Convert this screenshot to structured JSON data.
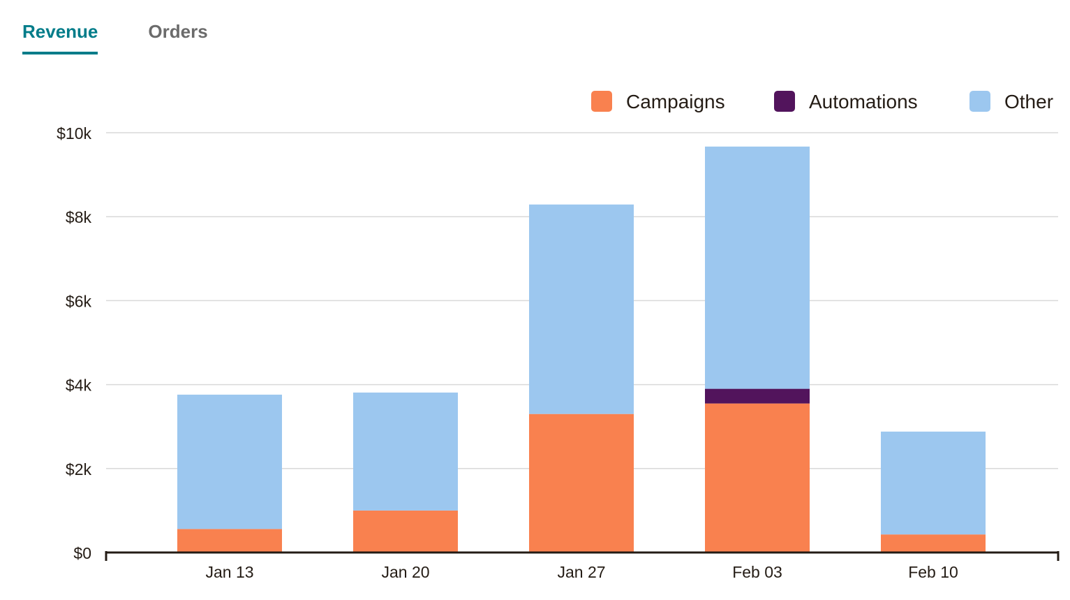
{
  "tabs": [
    {
      "label": "Revenue",
      "active": true
    },
    {
      "label": "Orders",
      "active": false
    }
  ],
  "colors": {
    "accent": "#007c89",
    "campaigns": "#f9814f",
    "automations": "#52145c",
    "other": "#9cc7ef",
    "grid": "#d9d9d9",
    "axis": "#241c15"
  },
  "chart_data": {
    "type": "bar",
    "stacked": true,
    "title": "",
    "xlabel": "",
    "ylabel": "",
    "categories": [
      "Jan 13",
      "Jan 20",
      "Jan 27",
      "Feb 03",
      "Feb 10"
    ],
    "series": [
      {
        "name": "Campaigns",
        "color": "#f9814f",
        "values": [
          560,
          1000,
          3300,
          3550,
          430
        ]
      },
      {
        "name": "Automations",
        "color": "#52145c",
        "values": [
          0,
          0,
          0,
          350,
          0
        ]
      },
      {
        "name": "Other",
        "color": "#9cc7ef",
        "values": [
          3200,
          2810,
          4990,
          5770,
          2450
        ]
      }
    ],
    "ylim": [
      0,
      10000
    ],
    "yticks": [
      0,
      2000,
      4000,
      6000,
      8000,
      10000
    ],
    "ytick_labels": [
      "$0",
      "$2k",
      "$4k",
      "$6k",
      "$8k",
      "$10k"
    ],
    "grid": true,
    "legend_position": "top-right"
  }
}
